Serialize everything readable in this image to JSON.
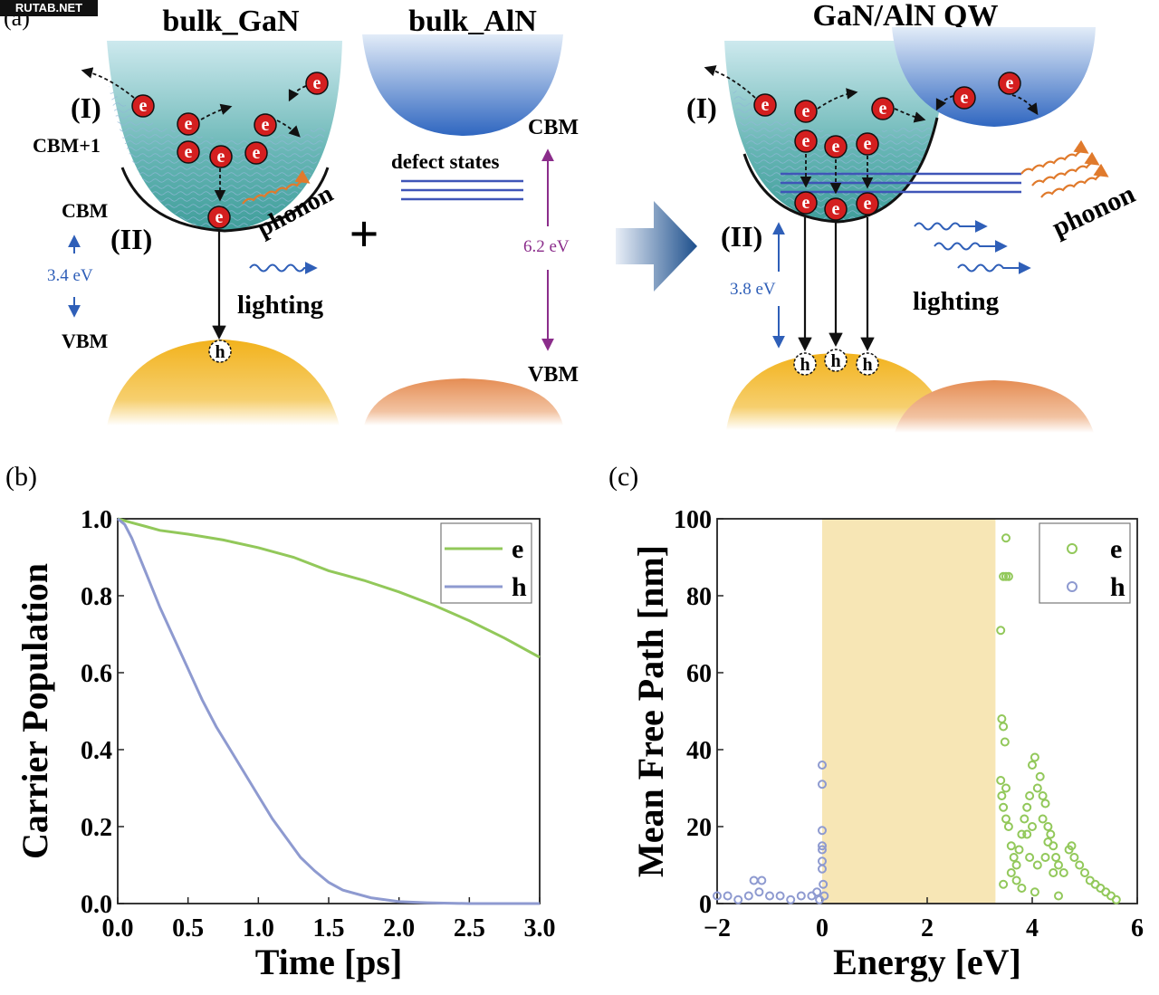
{
  "watermark": "RUTAB.NET",
  "panel_a": {
    "label": "(a)",
    "bulk_gan": {
      "title": "bulk_GaN",
      "region_1": "(I)",
      "region_2": "(II)",
      "cbm_plus_1": "CBM+1",
      "cbm": "CBM",
      "gap": "3.4 eV",
      "vbm": "VBM",
      "phonon": "phonon",
      "lighting": "lighting",
      "electron": "e",
      "hole": "h"
    },
    "plus": "+",
    "bulk_aln": {
      "title": "bulk_AlN",
      "defect_states": "defect states",
      "cbm": "CBM",
      "gap": "6.2 eV",
      "vbm": "VBM"
    },
    "qw": {
      "title": "GaN/AlN QW",
      "region_1": "(I)",
      "region_2": "(II)",
      "gap": "3.8 eV",
      "phonon": "phonon",
      "lighting": "lighting",
      "electron": "e",
      "hole": "h"
    },
    "colors": {
      "gan_cb": "#5fb3b3",
      "aln_cb": "#3f78c8",
      "gan_vb": "#f0b52a",
      "aln_vb": "#e8935a",
      "electron": "#d41f1f",
      "phonon": "#e07a2c",
      "light": "#2f5fb8",
      "gap_arrow_aln": "#8b2d8b"
    }
  },
  "chart_data": [
    {
      "panel": "(b)",
      "type": "line",
      "xlabel": "Time [ps]",
      "ylabel": "Carrier Population",
      "xlim": [
        0,
        3
      ],
      "ylim": [
        0,
        1
      ],
      "xticks": [
        "0.0",
        "0.5",
        "1.0",
        "1.5",
        "2.0",
        "2.5",
        "3.0"
      ],
      "yticks": [
        "0.0",
        "0.2",
        "0.4",
        "0.6",
        "0.8",
        "1.0"
      ],
      "legend_position": "top-right",
      "series": [
        {
          "name": "e",
          "color": "#92c85a",
          "x": [
            0,
            0.1,
            0.2,
            0.3,
            0.5,
            0.75,
            1.0,
            1.25,
            1.5,
            1.75,
            2.0,
            2.25,
            2.5,
            2.75,
            3.0
          ],
          "y": [
            1.0,
            0.99,
            0.98,
            0.97,
            0.96,
            0.945,
            0.925,
            0.9,
            0.865,
            0.84,
            0.81,
            0.775,
            0.735,
            0.69,
            0.64
          ]
        },
        {
          "name": "h",
          "color": "#8e9ad0",
          "x": [
            0,
            0.05,
            0.1,
            0.2,
            0.3,
            0.4,
            0.5,
            0.6,
            0.7,
            0.8,
            0.9,
            1.0,
            1.1,
            1.2,
            1.3,
            1.4,
            1.5,
            1.6,
            1.8,
            2.0,
            2.2,
            2.5,
            3.0
          ],
          "y": [
            1.0,
            0.985,
            0.95,
            0.86,
            0.77,
            0.69,
            0.61,
            0.53,
            0.46,
            0.4,
            0.34,
            0.28,
            0.22,
            0.17,
            0.12,
            0.085,
            0.055,
            0.035,
            0.015,
            0.005,
            0.002,
            0.0,
            0.0
          ]
        }
      ]
    },
    {
      "panel": "(c)",
      "type": "scatter",
      "xlabel": "Energy [eV]",
      "ylabel": "Mean Free Path [nm]",
      "xlim": [
        -2,
        6
      ],
      "ylim": [
        0,
        100
      ],
      "xticks": [
        "−2",
        "0",
        "2",
        "4",
        "6"
      ],
      "yticks": [
        "0",
        "20",
        "40",
        "60",
        "80",
        "100"
      ],
      "legend_position": "top-right",
      "band_gap_shading": {
        "from": 0.0,
        "to": 3.3,
        "color": "#f7e6b5"
      },
      "series": [
        {
          "name": "e",
          "color": "#92c85a",
          "x": [
            3.4,
            3.45,
            3.5,
            3.5,
            3.55,
            3.42,
            3.45,
            3.48,
            3.4,
            3.42,
            3.45,
            3.5,
            3.55,
            3.6,
            3.65,
            3.7,
            3.75,
            3.8,
            3.85,
            3.9,
            3.95,
            4.0,
            4.05,
            4.1,
            4.15,
            4.2,
            4.25,
            4.3,
            4.35,
            4.4,
            4.45,
            4.5,
            4.6,
            4.7,
            4.75,
            4.8,
            4.9,
            5.0,
            5.1,
            5.2,
            5.3,
            5.4,
            5.5,
            5.6,
            3.45,
            3.6,
            3.8,
            3.95,
            4.0,
            4.1,
            4.2,
            4.3,
            4.4,
            3.5,
            3.7,
            3.9,
            4.05,
            4.25,
            4.5
          ],
          "y": [
            71,
            85,
            95,
            85,
            85,
            48,
            46,
            42,
            32,
            28,
            25,
            22,
            20,
            15,
            12,
            10,
            14,
            18,
            22,
            25,
            28,
            36,
            38,
            30,
            33,
            28,
            26,
            20,
            18,
            15,
            12,
            10,
            8,
            14,
            15,
            12,
            10,
            8,
            6,
            5,
            4,
            3,
            2,
            1,
            5,
            8,
            4,
            12,
            20,
            10,
            22,
            16,
            8,
            30,
            6,
            18,
            3,
            12,
            2
          ]
        },
        {
          "name": "h",
          "color": "#8e9ad0",
          "x": [
            -2,
            -1.8,
            -1.6,
            -1.4,
            -1.3,
            -1.2,
            -1.15,
            -1.0,
            -0.8,
            -0.6,
            -0.4,
            -0.2,
            -0.1,
            -0.05,
            0.0,
            0.0,
            0.0,
            0.0,
            0.0,
            0.0,
            0.0,
            0.02,
            0.04
          ],
          "y": [
            2,
            2,
            1,
            2,
            6,
            3,
            6,
            2,
            2,
            1,
            2,
            2,
            3,
            1,
            36,
            31,
            19,
            15,
            14,
            11,
            9,
            5,
            2
          ]
        }
      ]
    }
  ]
}
